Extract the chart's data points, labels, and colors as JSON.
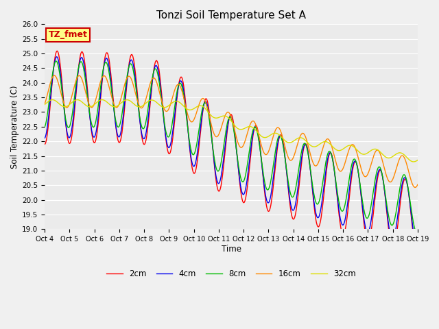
{
  "title": "Tonzi Soil Temperature Set A",
  "ylabel": "Soil Temperature (C)",
  "xlabel": "Time",
  "ylim": [
    19.0,
    26.0
  ],
  "yticks": [
    19.0,
    19.5,
    20.0,
    20.5,
    21.0,
    21.5,
    22.0,
    22.5,
    23.0,
    23.5,
    24.0,
    24.5,
    25.0,
    25.5,
    26.0
  ],
  "xtick_labels": [
    "Oct 4",
    "Oct 5",
    "Oct 6",
    "Oct 7",
    "Oct 8",
    "Oct 9",
    "Oct 10",
    "Oct 11",
    "Oct 12",
    "Oct 13",
    "Oct 14",
    "Oct 15",
    "Oct 16",
    "Oct 17",
    "Oct 18",
    "Oct 19"
  ],
  "legend_labels": [
    "2cm",
    "4cm",
    "8cm",
    "16cm",
    "32cm"
  ],
  "legend_colors": [
    "#ff0000",
    "#0000ee",
    "#00bb00",
    "#ff8800",
    "#dddd00"
  ],
  "bg_color": "#f0f0f0",
  "plot_bg_color": "#ebebeb",
  "grid_color": "#ffffff",
  "annotation_text": "TZ_fmet",
  "annotation_bg": "#ffff88",
  "annotation_border": "#cc0000",
  "n_days": 15,
  "start_day": 4
}
